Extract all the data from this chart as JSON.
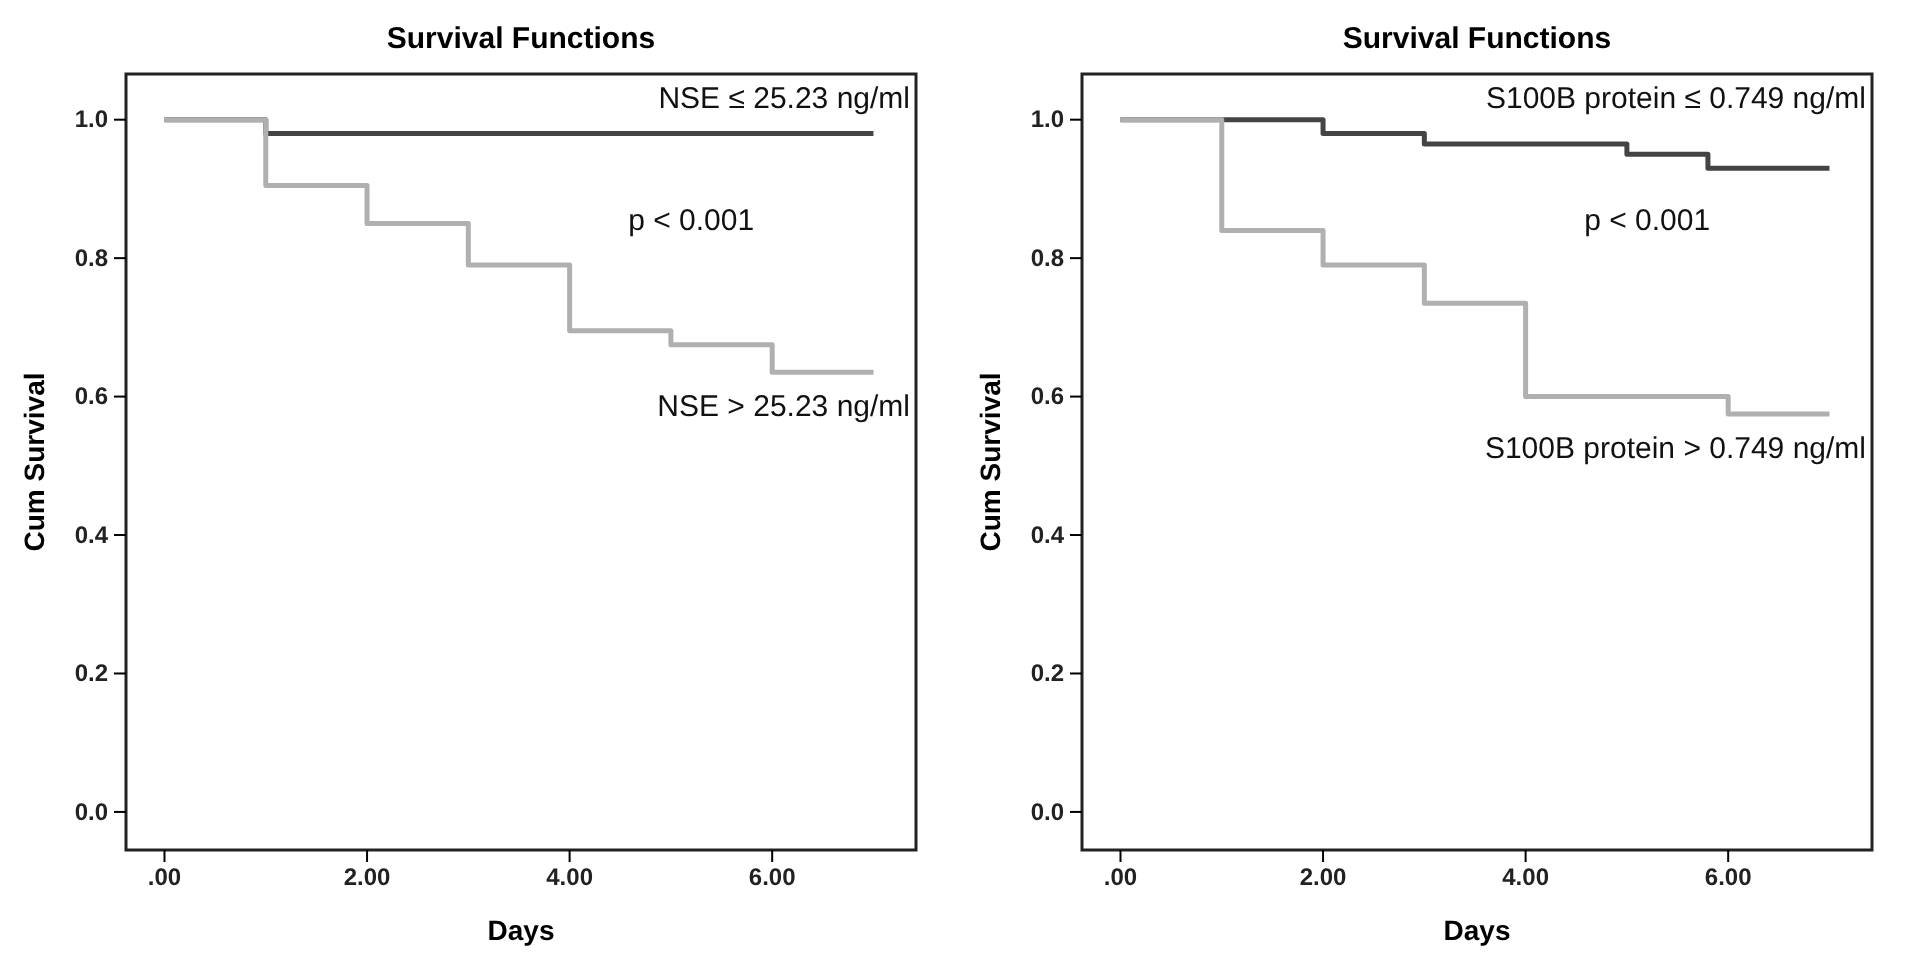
{
  "chart_data": [
    {
      "type": "step",
      "title": "Survival Functions",
      "xlabel": "Days",
      "ylabel": "Cum Survival",
      "xlim": [
        -0.38,
        7.42
      ],
      "ylim": [
        -0.055,
        1.066
      ],
      "xticks": [
        {
          "value": 0,
          "label": ".00"
        },
        {
          "value": 2,
          "label": "2.00"
        },
        {
          "value": 4,
          "label": "4.00"
        },
        {
          "value": 6,
          "label": "6.00"
        }
      ],
      "yticks": [
        {
          "value": 0,
          "label": "0.0"
        },
        {
          "value": 0.2,
          "label": "0.2"
        },
        {
          "value": 0.4,
          "label": "0.4"
        },
        {
          "value": 0.6,
          "label": "0.6"
        },
        {
          "value": 0.8,
          "label": "0.8"
        },
        {
          "value": 1,
          "label": "1.0"
        }
      ],
      "series": [
        {
          "name": "NSE ≤ 25.23 ng/ml",
          "color": "#444444",
          "x": [
            0,
            1,
            7
          ],
          "values": [
            1.0,
            0.98,
            0.98
          ]
        },
        {
          "name": "NSE > 25.23 ng/ml",
          "color": "#b0b0b0",
          "x": [
            0,
            1,
            2,
            3,
            4,
            5,
            6,
            7
          ],
          "values": [
            1.0,
            0.905,
            0.85,
            0.79,
            0.695,
            0.675,
            0.635,
            0.635
          ]
        }
      ],
      "annotations": [
        "p < 0.001"
      ],
      "grid": false
    },
    {
      "type": "step",
      "title": "Survival Functions",
      "xlabel": "Days",
      "ylabel": "Cum Survival",
      "xlim": [
        -0.38,
        7.42
      ],
      "ylim": [
        -0.055,
        1.066
      ],
      "xticks": [
        {
          "value": 0,
          "label": ".00"
        },
        {
          "value": 2,
          "label": "2.00"
        },
        {
          "value": 4,
          "label": "4.00"
        },
        {
          "value": 6,
          "label": "6.00"
        }
      ],
      "yticks": [
        {
          "value": 0,
          "label": "0.0"
        },
        {
          "value": 0.2,
          "label": "0.2"
        },
        {
          "value": 0.4,
          "label": "0.4"
        },
        {
          "value": 0.6,
          "label": "0.6"
        },
        {
          "value": 0.8,
          "label": "0.8"
        },
        {
          "value": 1,
          "label": "1.0"
        }
      ],
      "series": [
        {
          "name": "S100B protein ≤ 0.749 ng/ml",
          "color": "#444444",
          "x": [
            0,
            2,
            3,
            5,
            5.8,
            7
          ],
          "values": [
            1.0,
            0.98,
            0.965,
            0.95,
            0.93,
            0.93
          ]
        },
        {
          "name": "S100B protein > 0.749 ng/ml",
          "color": "#b0b0b0",
          "x": [
            0,
            1,
            2,
            3,
            4,
            6,
            7
          ],
          "values": [
            1.0,
            0.84,
            0.79,
            0.735,
            0.6,
            0.575,
            0.575
          ]
        }
      ],
      "annotations": [
        "p < 0.001"
      ],
      "grid": false
    }
  ]
}
